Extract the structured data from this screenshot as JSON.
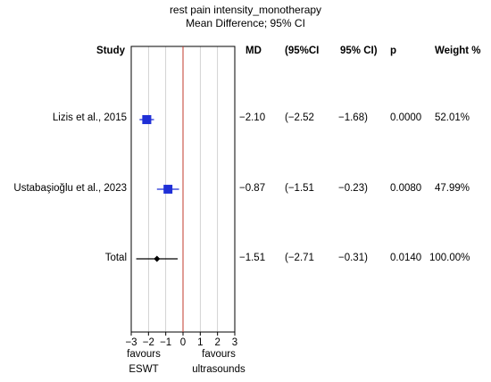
{
  "title": {
    "line1": "rest pain intensity_monotherapy",
    "line2": "Mean Difference; 95% CI"
  },
  "headers": {
    "study": "Study",
    "md": "MD",
    "ci_low": "(95%CI",
    "ci_high": "95% CI)",
    "p": "p",
    "weight": "Weight %"
  },
  "rows": [
    {
      "study": "Lizis et al., 2015",
      "md": "−2.10",
      "ci_low": "(−2.52",
      "ci_high": "−1.68)",
      "p": "0.0000",
      "weight": "52.01%"
    },
    {
      "study": "Ustabaşioğlu et al., 2023",
      "md": "−0.87",
      "ci_low": "(−1.51",
      "ci_high": "−0.23)",
      "p": "0.0080",
      "weight": "47.99%"
    },
    {
      "study": "Total",
      "md": "−1.51",
      "ci_low": "(−2.71",
      "ci_high": "−0.31)",
      "p": "0.0140",
      "weight": "100.00%"
    }
  ],
  "favours": {
    "left_line1": "favours",
    "left_line2": "ESWT",
    "right_line1": "favours",
    "right_line2": "ultrasounds"
  },
  "colors": {
    "square": "#1f2fd6",
    "ci_line": "#1f2fd6",
    "zero_line": "#c0392b",
    "grid": "#c8c8c8",
    "total": "#000000"
  },
  "chart_data": {
    "type": "forest",
    "title": "rest pain intensity_monotherapy",
    "subtitle": "Mean Difference; 95% CI",
    "x_ticks": [
      "−3",
      "−2",
      "−1",
      "0",
      "1",
      "2",
      "3"
    ],
    "xlim": [
      -3,
      3
    ],
    "studies": [
      {
        "name": "Lizis et al., 2015",
        "md": -2.1,
        "ci": [
          -2.52,
          -1.68
        ],
        "p": 0.0,
        "weight": 52.01
      },
      {
        "name": "Ustabaşioğlu et al., 2023",
        "md": -0.87,
        "ci": [
          -1.51,
          -0.23
        ],
        "p": 0.008,
        "weight": 47.99
      }
    ],
    "total": {
      "name": "Total",
      "md": -1.51,
      "ci": [
        -2.71,
        -0.31
      ],
      "p": 0.014,
      "weight": 100.0
    }
  }
}
